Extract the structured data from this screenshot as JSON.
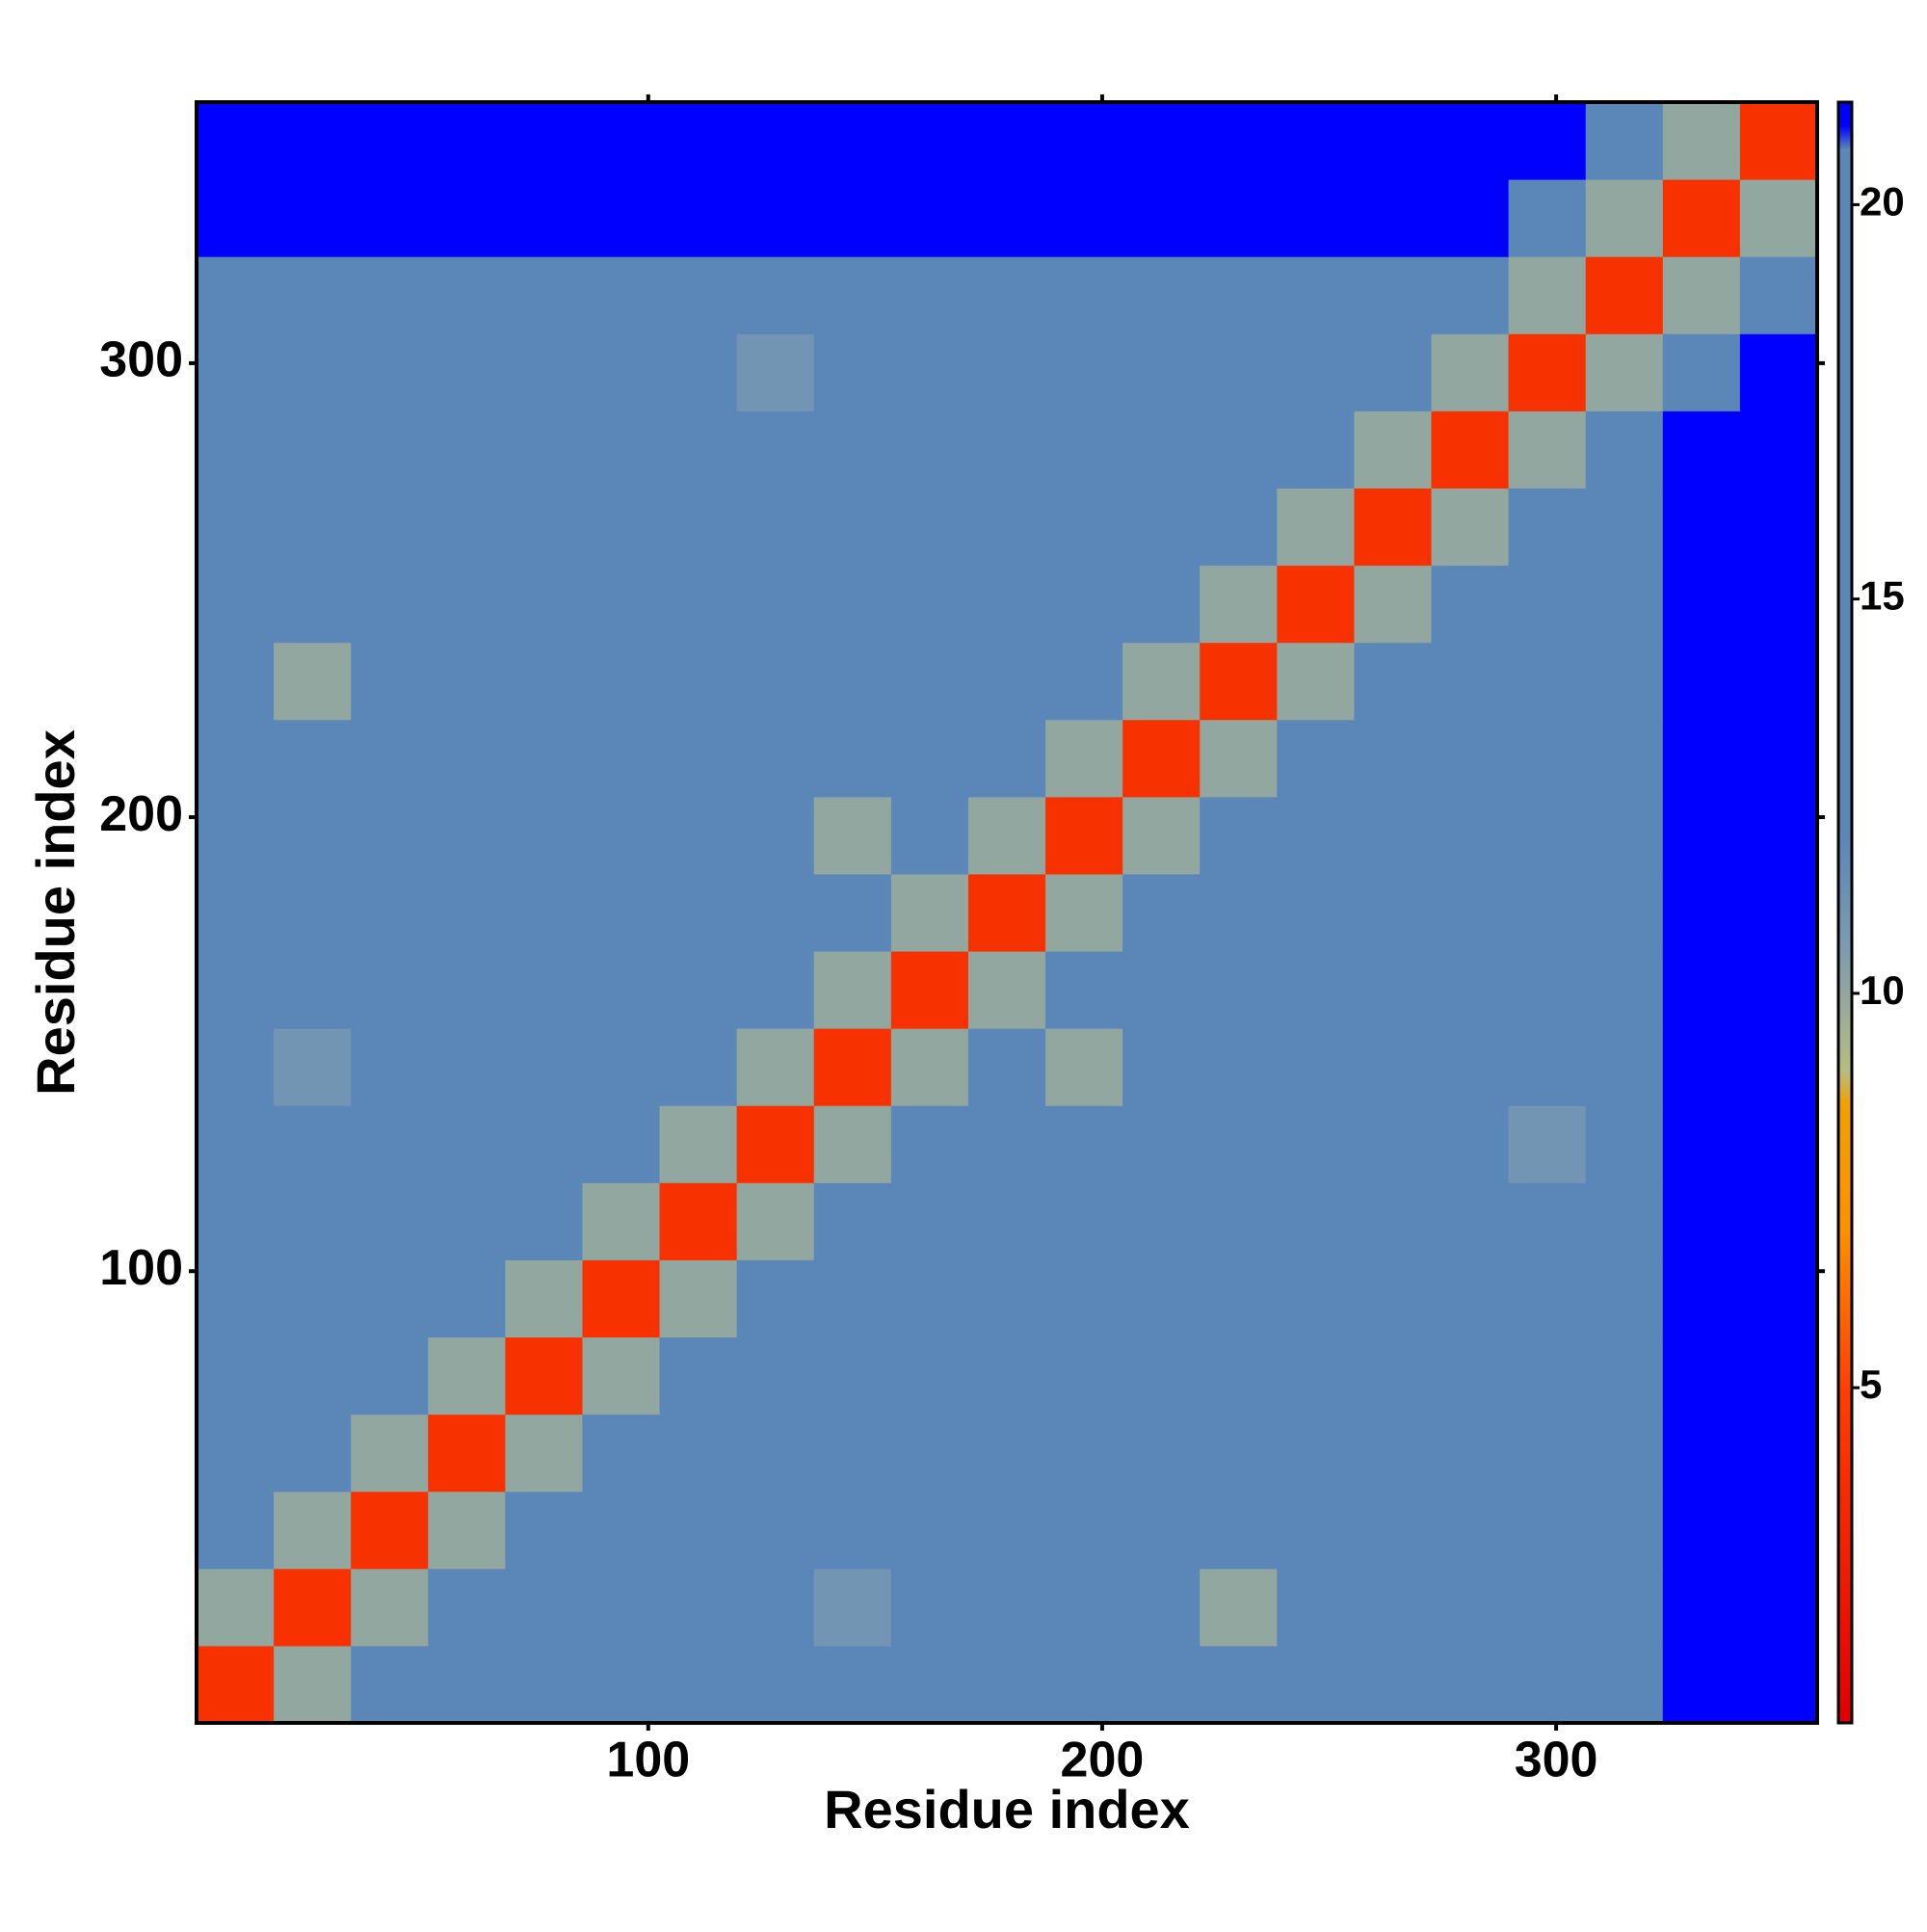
{
  "chart_data": {
    "type": "heatmap",
    "x_label": "Residue index",
    "y_label": "Residue index",
    "xlim": [
      0.5,
      357.5
    ],
    "ylim": [
      0.5,
      357.5
    ],
    "xticks": [
      100,
      200,
      300
    ],
    "yticks": [
      100,
      200,
      300
    ],
    "bins": [
      0.5,
      17.5,
      34.5,
      51.5,
      68.5,
      85.5,
      102.5,
      119.5,
      136.5,
      153.5,
      170.5,
      187.5,
      204.5,
      221.5,
      238.5,
      255.5,
      272.5,
      289.5,
      306.5,
      323.5,
      340.5,
      357.5
    ],
    "z": [
      [
        4,
        10,
        13,
        16,
        16,
        16,
        16,
        16,
        16,
        16,
        16,
        16,
        16,
        16,
        16,
        16,
        16,
        16,
        19,
        21,
        21
      ],
      [
        10,
        4,
        10,
        13,
        16,
        16,
        16,
        16,
        11,
        16,
        16,
        16,
        16,
        10,
        16,
        16,
        16,
        16,
        19,
        21,
        21
      ],
      [
        13,
        10,
        4,
        10,
        13,
        16,
        16,
        16,
        16,
        16,
        16,
        16,
        16,
        16,
        16,
        16,
        16,
        16,
        19,
        21,
        21
      ],
      [
        16,
        13,
        10,
        4,
        10,
        13,
        16,
        16,
        16,
        16,
        16,
        16,
        16,
        16,
        19,
        19,
        16,
        16,
        19,
        21,
        21
      ],
      [
        16,
        16,
        13,
        10,
        4,
        10,
        13,
        16,
        16,
        16,
        16,
        16,
        16,
        16,
        16,
        16,
        19,
        16,
        19,
        21,
        21
      ],
      [
        16,
        16,
        16,
        13,
        10,
        4,
        10,
        13,
        16,
        16,
        16,
        16,
        16,
        16,
        16,
        19,
        16,
        16,
        19,
        21,
        21
      ],
      [
        16,
        16,
        16,
        16,
        13,
        10,
        4,
        10,
        13,
        16,
        16,
        16,
        16,
        16,
        16,
        16,
        16,
        16,
        19,
        21,
        21
      ],
      [
        16,
        16,
        16,
        16,
        16,
        13,
        10,
        4,
        10,
        13,
        16,
        16,
        16,
        16,
        16,
        16,
        16,
        11,
        19,
        21,
        21
      ],
      [
        16,
        11,
        16,
        16,
        16,
        16,
        13,
        10,
        4,
        10,
        13,
        10,
        16,
        16,
        16,
        16,
        16,
        16,
        19,
        21,
        21
      ],
      [
        16,
        16,
        16,
        16,
        16,
        16,
        16,
        13,
        10,
        4,
        10,
        13,
        16,
        16,
        16,
        16,
        16,
        16,
        19,
        21,
        21
      ],
      [
        16,
        16,
        16,
        16,
        16,
        16,
        16,
        16,
        13,
        10,
        4,
        10,
        13,
        16,
        16,
        16,
        16,
        16,
        19,
        21,
        21
      ],
      [
        16,
        16,
        16,
        16,
        16,
        16,
        16,
        16,
        10,
        13,
        10,
        4,
        10,
        13,
        16,
        16,
        16,
        16,
        19,
        21,
        21
      ],
      [
        16,
        16,
        16,
        16,
        16,
        16,
        16,
        16,
        16,
        16,
        13,
        10,
        4,
        10,
        13,
        16,
        16,
        16,
        19,
        21,
        21
      ],
      [
        16,
        10,
        16,
        16,
        16,
        16,
        16,
        16,
        16,
        16,
        16,
        13,
        10,
        4,
        10,
        13,
        16,
        16,
        19,
        21,
        21
      ],
      [
        16,
        16,
        16,
        19,
        16,
        16,
        16,
        16,
        16,
        16,
        16,
        16,
        13,
        10,
        4,
        10,
        13,
        16,
        19,
        21,
        21
      ],
      [
        16,
        16,
        16,
        19,
        16,
        19,
        16,
        16,
        16,
        16,
        16,
        16,
        16,
        13,
        10,
        4,
        10,
        13,
        19,
        21,
        21
      ],
      [
        16,
        16,
        16,
        16,
        19,
        16,
        16,
        16,
        16,
        16,
        16,
        16,
        16,
        16,
        13,
        10,
        4,
        10,
        13,
        21,
        21
      ],
      [
        16,
        16,
        16,
        16,
        16,
        16,
        16,
        11,
        16,
        16,
        16,
        16,
        16,
        16,
        16,
        13,
        10,
        4,
        10,
        13,
        21
      ],
      [
        19,
        19,
        19,
        19,
        19,
        19,
        19,
        19,
        19,
        19,
        19,
        19,
        19,
        19,
        19,
        19,
        13,
        10,
        4,
        10,
        13
      ],
      [
        21,
        21,
        21,
        21,
        21,
        21,
        21,
        21,
        21,
        21,
        21,
        21,
        21,
        21,
        21,
        21,
        21,
        13,
        10,
        4,
        10
      ],
      [
        21,
        21,
        21,
        21,
        21,
        21,
        21,
        21,
        21,
        21,
        21,
        21,
        21,
        21,
        21,
        21,
        21,
        21,
        13,
        10,
        4
      ]
    ],
    "colorbar": {
      "lim": [
        0.75,
        21.3
      ],
      "ticks": [
        5,
        10,
        15,
        20
      ]
    },
    "colorscale": [
      {
        "value": 0.75,
        "color": "#e00000"
      },
      {
        "value": 5,
        "color": "#ff4000"
      },
      {
        "value": 7,
        "color": "#ff9000"
      },
      {
        "value": 8.6,
        "color": "#f0a000"
      },
      {
        "value": 9,
        "color": "#b8bc80"
      },
      {
        "value": 10.5,
        "color": "#7e9cb0"
      },
      {
        "value": 12,
        "color": "#5b86b8"
      },
      {
        "value": 20.7,
        "color": "#5b86b8"
      },
      {
        "value": 21,
        "color": "#0000ff"
      },
      {
        "value": 21.3,
        "color": "#0000ff"
      }
    ]
  }
}
